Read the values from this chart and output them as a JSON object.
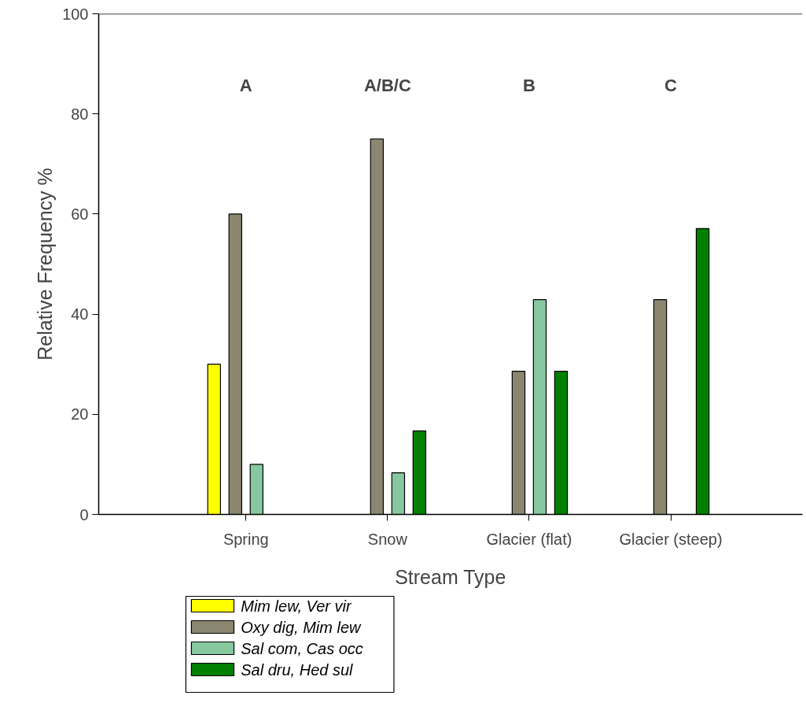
{
  "chart_data": {
    "type": "bar",
    "xlabel": "Stream Type",
    "ylabel": "Relative Frequency %",
    "categories": [
      "Spring",
      "Snow",
      "Glacier (flat)",
      "Glacier (steep)"
    ],
    "series": [
      {
        "name": "Mim lew, Ver vir",
        "color": "#ffff00",
        "values": [
          30,
          null,
          null,
          null
        ]
      },
      {
        "name": "Oxy dig, Mim lew",
        "color": "#8b8670",
        "values": [
          60,
          75,
          28.6,
          42.9
        ]
      },
      {
        "name": "Sal com, Cas occ",
        "color": "#88c8a0",
        "values": [
          10,
          8.3,
          42.9,
          null
        ]
      },
      {
        "name": "Sal dru, Hed sul",
        "color": "#007f00",
        "values": [
          null,
          16.7,
          28.6,
          57.1
        ]
      }
    ],
    "ylim": [
      0,
      100
    ],
    "yticks": [
      0,
      20,
      40,
      60,
      80,
      100
    ],
    "grid": false,
    "legend": "bottom left",
    "annotations": [
      "A",
      "A/B/C",
      "B",
      "C"
    ]
  }
}
